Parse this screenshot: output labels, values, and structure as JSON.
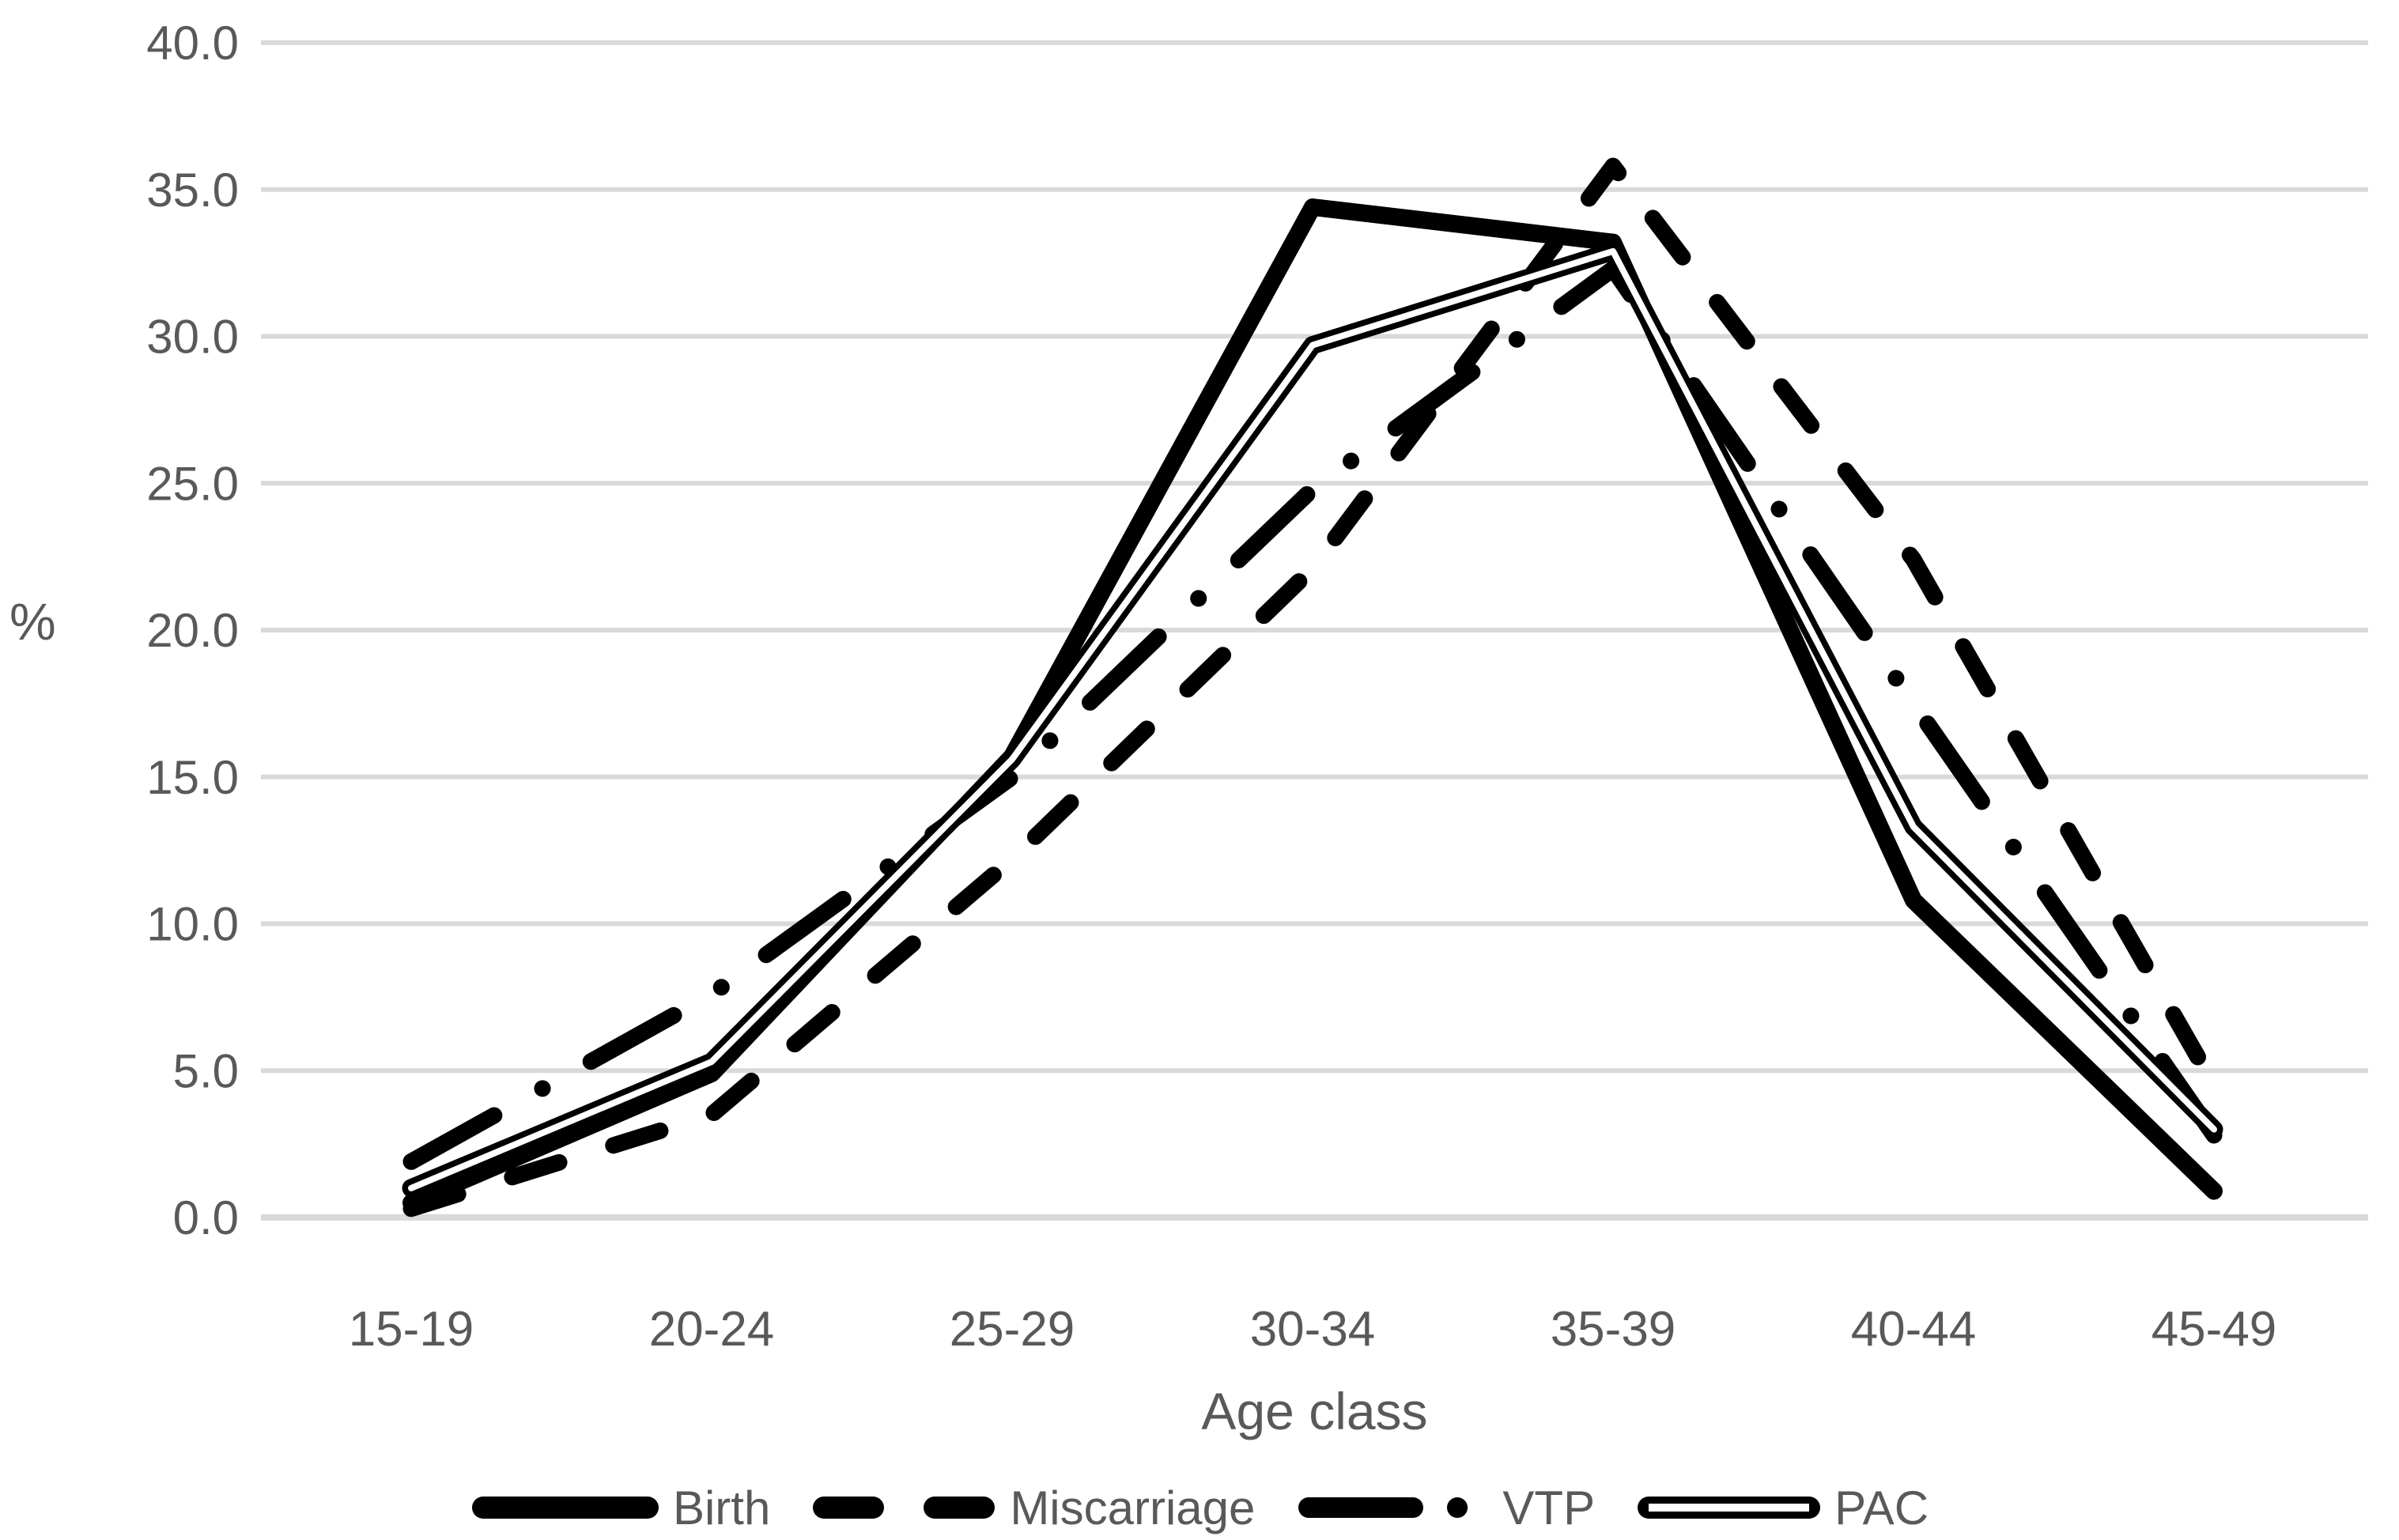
{
  "chart_data": {
    "type": "line",
    "title": "",
    "xlabel": "Age class",
    "ylabel": "%",
    "categories": [
      "15-19",
      "20-24",
      "25-29",
      "30-34",
      "35-39",
      "40-44",
      "45-49"
    ],
    "series": [
      {
        "name": "Birth",
        "style": "solid-thick",
        "color": "#000000",
        "values": [
          0.5,
          4.9,
          15.7,
          34.4,
          33.2,
          10.8,
          0.9
        ]
      },
      {
        "name": "Miscarriage",
        "style": "dashed",
        "color": "#000000",
        "values": [
          0.3,
          3.5,
          12.2,
          22.1,
          35.8,
          22.4,
          4.5
        ]
      },
      {
        "name": "VTP",
        "style": "dash-dot",
        "color": "#000000",
        "values": [
          1.9,
          7.6,
          15.0,
          24.8,
          32.3,
          17.5,
          2.8
        ]
      },
      {
        "name": "PAC",
        "style": "double-line",
        "color": "#000000",
        "values": [
          1.0,
          5.3,
          15.6,
          29.7,
          32.9,
          13.3,
          3.0
        ]
      }
    ],
    "ylim": [
      0,
      40
    ],
    "yticks": [
      "0.0",
      "5.0",
      "10.0",
      "15.0",
      "20.0",
      "25.0",
      "30.0",
      "35.0",
      "40.0"
    ],
    "grid": true,
    "legend_position": "bottom",
    "colors": {
      "line": "#000000",
      "grid": "#d9d9d9",
      "text": "#595959",
      "background": "#ffffff"
    }
  }
}
